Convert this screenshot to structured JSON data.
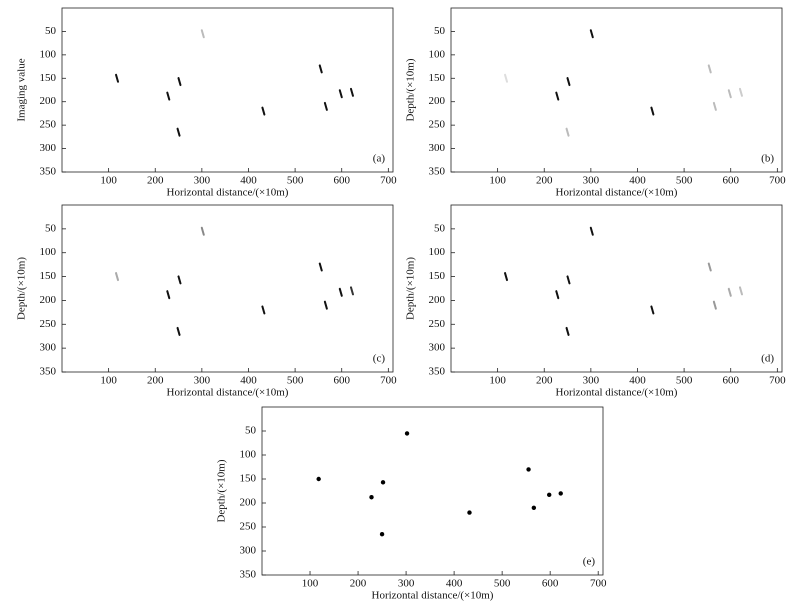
{
  "chart_data": [
    {
      "type": "scatter",
      "marker": "dash",
      "panel_label": "(a)",
      "xlabel": "Horizontal distance/(×10m)",
      "ylabel": "Imaging value",
      "x": [
        118,
        228,
        252,
        302,
        250,
        432,
        555,
        566,
        598,
        622
      ],
      "values": [
        150,
        188,
        157,
        55,
        265,
        220,
        130,
        210,
        183,
        180
      ],
      "colors": [
        "#111",
        "#111",
        "#111",
        "#bbb",
        "#111",
        "#111",
        "#111",
        "#111",
        "#111",
        "#111"
      ],
      "xlim": [
        0,
        710
      ],
      "ylim": [
        350,
        0
      ],
      "xticks": [
        100,
        200,
        300,
        400,
        500,
        600,
        700
      ],
      "yticks": [
        50,
        100,
        150,
        200,
        250,
        300,
        350
      ]
    },
    {
      "type": "scatter",
      "marker": "dash",
      "panel_label": "(b)",
      "xlabel": "Horizontal distance/(×10m)",
      "ylabel": "Depth/(×10m)",
      "x": [
        118,
        228,
        252,
        302,
        250,
        432,
        555,
        566,
        598,
        622
      ],
      "values": [
        150,
        188,
        157,
        55,
        265,
        220,
        130,
        210,
        183,
        180
      ],
      "colors": [
        "#ddd",
        "#111",
        "#111",
        "#111",
        "#bbb",
        "#111",
        "#bbb",
        "#bbb",
        "#bbb",
        "#ccc"
      ],
      "xlim": [
        0,
        710
      ],
      "ylim": [
        350,
        0
      ],
      "xticks": [
        100,
        200,
        300,
        400,
        500,
        600,
        700
      ],
      "yticks": [
        50,
        100,
        150,
        200,
        250,
        300,
        350
      ]
    },
    {
      "type": "scatter",
      "marker": "dash",
      "panel_label": "(c)",
      "xlabel": "Horizontal distance/(×10m)",
      "ylabel": "Depth/(×10m)",
      "x": [
        118,
        228,
        252,
        302,
        250,
        432,
        555,
        566,
        598,
        622
      ],
      "values": [
        150,
        188,
        157,
        55,
        265,
        220,
        130,
        210,
        183,
        180
      ],
      "colors": [
        "#aaa",
        "#111",
        "#111",
        "#888",
        "#111",
        "#111",
        "#111",
        "#111",
        "#111",
        "#333"
      ],
      "xlim": [
        0,
        710
      ],
      "ylim": [
        350,
        0
      ],
      "xticks": [
        100,
        200,
        300,
        400,
        500,
        600,
        700
      ],
      "yticks": [
        50,
        100,
        150,
        200,
        250,
        300,
        350
      ]
    },
    {
      "type": "scatter",
      "marker": "dash",
      "panel_label": "(d)",
      "xlabel": "Horizontal distance/(×10m)",
      "ylabel": "Depth/(×10m)",
      "x": [
        118,
        228,
        252,
        302,
        250,
        432,
        555,
        566,
        598,
        622
      ],
      "values": [
        150,
        188,
        157,
        55,
        265,
        220,
        130,
        210,
        183,
        180
      ],
      "colors": [
        "#111",
        "#111",
        "#111",
        "#111",
        "#111",
        "#111",
        "#999",
        "#999",
        "#aaa",
        "#bbb"
      ],
      "xlim": [
        0,
        710
      ],
      "ylim": [
        350,
        0
      ],
      "xticks": [
        100,
        200,
        300,
        400,
        500,
        600,
        700
      ],
      "yticks": [
        50,
        100,
        150,
        200,
        250,
        300,
        350
      ]
    },
    {
      "type": "scatter",
      "marker": "dot",
      "panel_label": "(e)",
      "xlabel": "Horizontal distance/(×10m)",
      "ylabel": "Depth/(×10m)",
      "x": [
        118,
        228,
        252,
        302,
        250,
        432,
        555,
        566,
        598,
        622
      ],
      "values": [
        150,
        188,
        157,
        55,
        265,
        220,
        130,
        210,
        183,
        180
      ],
      "colors": [
        "#000",
        "#000",
        "#000",
        "#000",
        "#000",
        "#000",
        "#000",
        "#000",
        "#000",
        "#000"
      ],
      "xlim": [
        0,
        710
      ],
      "ylim": [
        350,
        0
      ],
      "xticks": [
        100,
        200,
        300,
        400,
        500,
        600,
        700
      ],
      "yticks": [
        50,
        100,
        150,
        200,
        250,
        300,
        350
      ]
    }
  ]
}
